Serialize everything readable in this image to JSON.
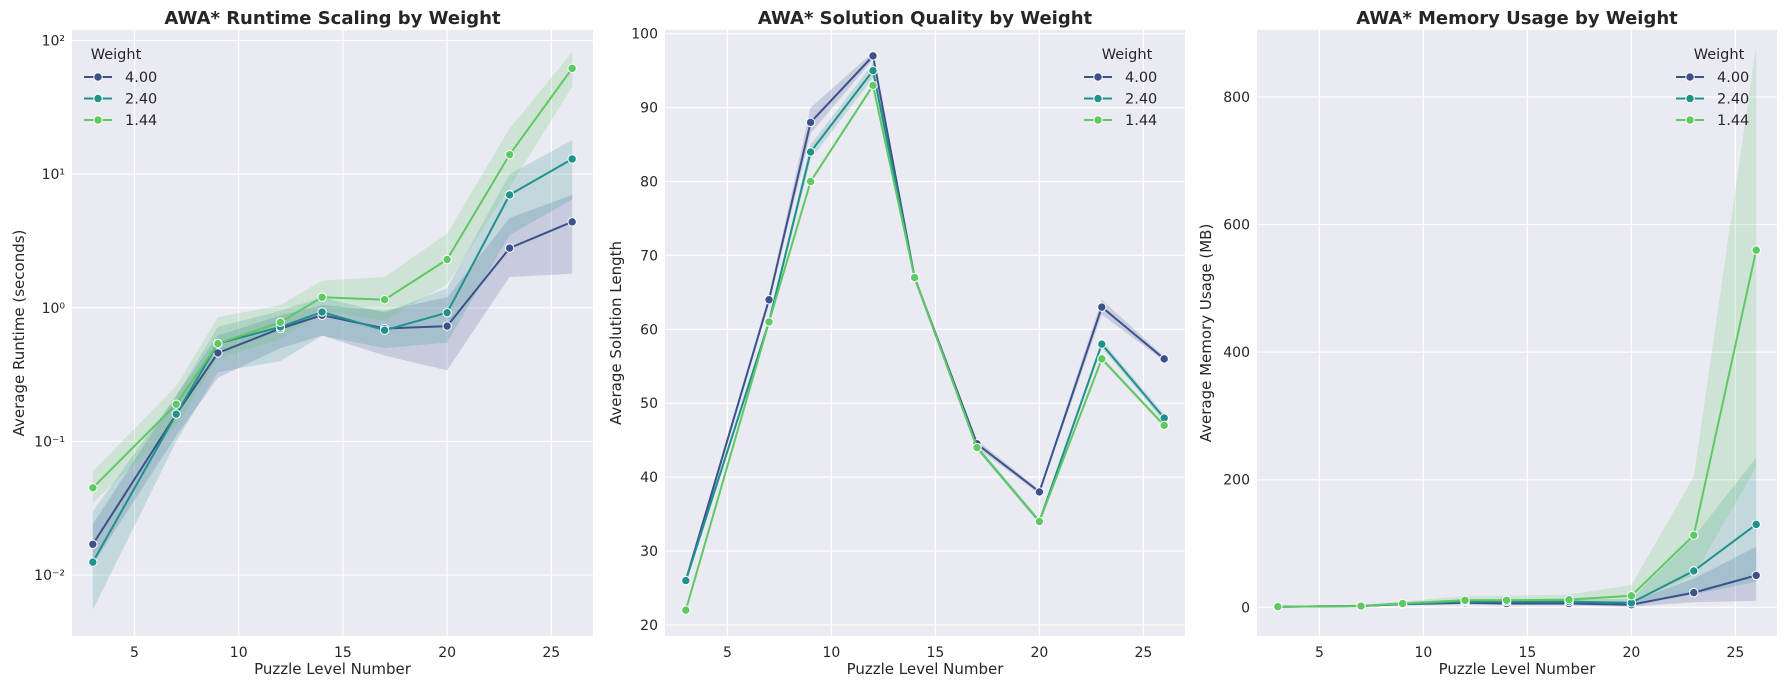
{
  "colors": {
    "w400": "#3b528b",
    "w240": "#21918c",
    "w144": "#5ec962",
    "panel_bg": "#eaeaf2",
    "grid": "#ffffff",
    "text": "#262626"
  },
  "chart_data": [
    {
      "type": "line",
      "title": "AWA* Runtime Scaling by Weight",
      "xlabel": "Puzzle Level Number",
      "ylabel": "Average Runtime (seconds)",
      "yscale": "log",
      "xlim": [
        2,
        27
      ],
      "ylim": [
        0.0035,
        120
      ],
      "x_ticks": [
        5,
        10,
        15,
        20,
        25
      ],
      "y_ticks": [
        0.01,
        0.1,
        1,
        10,
        100
      ],
      "y_tick_labels": [
        "10⁻²",
        "10⁻¹",
        "10⁰",
        "10¹",
        "10²"
      ],
      "x": [
        3,
        7,
        9,
        12,
        14,
        17,
        20,
        23,
        26
      ],
      "legend": {
        "title": "Weight",
        "placement": "upper-left"
      },
      "series": [
        {
          "name": "4.00",
          "values": [
            0.017,
            0.16,
            0.46,
            0.7,
            0.88,
            0.7,
            0.73,
            2.8,
            4.4
          ],
          "lower": [
            0.012,
            0.11,
            0.3,
            0.5,
            0.62,
            0.44,
            0.34,
            1.7,
            1.8
          ],
          "upper": [
            0.024,
            0.22,
            0.62,
            0.88,
            1.05,
            0.95,
            1.2,
            4.7,
            7.0
          ]
        },
        {
          "name": "2.40",
          "values": [
            0.0125,
            0.16,
            0.54,
            0.72,
            0.93,
            0.68,
            0.92,
            7.0,
            13.0
          ],
          "lower": [
            0.0055,
            0.1,
            0.33,
            0.4,
            0.62,
            0.5,
            0.55,
            3.5,
            6.5
          ],
          "upper": [
            0.03,
            0.22,
            0.72,
            0.95,
            1.2,
            0.92,
            1.4,
            10.0,
            18.0
          ]
        },
        {
          "name": "1.44",
          "values": [
            0.045,
            0.19,
            0.54,
            0.78,
            1.2,
            1.15,
            2.3,
            14.0,
            62.0
          ],
          "lower": [
            0.035,
            0.13,
            0.42,
            0.58,
            0.95,
            0.8,
            1.5,
            8.0,
            45.0
          ],
          "upper": [
            0.06,
            0.26,
            0.85,
            1.05,
            1.6,
            1.7,
            3.6,
            22.0,
            82.0
          ]
        }
      ]
    },
    {
      "type": "line",
      "title": "AWA* Solution Quality by Weight",
      "xlabel": "Puzzle Level Number",
      "ylabel": "Average Solution Length",
      "yscale": "linear",
      "xlim": [
        2,
        27
      ],
      "ylim": [
        18.5,
        100.5
      ],
      "x_ticks": [
        5,
        10,
        15,
        20,
        25
      ],
      "y_ticks": [
        20,
        30,
        40,
        50,
        60,
        70,
        80,
        90,
        100
      ],
      "y_tick_labels": [
        "20",
        "30",
        "40",
        "50",
        "60",
        "70",
        "80",
        "90",
        "100"
      ],
      "x": [
        3,
        7,
        9,
        12,
        14,
        17,
        20,
        23,
        26
      ],
      "legend": {
        "title": "Weight",
        "placement": "upper-right"
      },
      "series": [
        {
          "name": "4.00",
          "values": [
            26,
            64,
            88,
            97,
            67,
            44.5,
            38,
            63,
            56
          ],
          "lower": [
            25.5,
            63.5,
            86.5,
            96.5,
            66.7,
            44.0,
            37.7,
            62.0,
            55.7
          ],
          "upper": [
            26.5,
            64.5,
            90,
            97.5,
            67.3,
            45.0,
            38.3,
            64.0,
            56.3
          ]
        },
        {
          "name": "2.40",
          "values": [
            26,
            61,
            84,
            95,
            67,
            44,
            34,
            58,
            48
          ],
          "lower": [
            25.5,
            60.5,
            83,
            94,
            66.7,
            43.7,
            33.7,
            57.5,
            47.5
          ],
          "upper": [
            26.5,
            61.5,
            85,
            96,
            67.3,
            44.3,
            34.3,
            58.5,
            48.5
          ]
        },
        {
          "name": "1.44",
          "values": [
            22,
            61,
            80,
            93,
            67,
            44,
            34,
            56,
            47
          ],
          "lower": [
            21.7,
            60.7,
            79.7,
            92.7,
            66.7,
            43.7,
            33.7,
            55.7,
            46.7
          ],
          "upper": [
            22.3,
            61.3,
            80.3,
            93.3,
            67.3,
            44.3,
            34.3,
            56.3,
            47.3
          ]
        }
      ]
    },
    {
      "type": "line",
      "title": "AWA* Memory Usage by Weight",
      "xlabel": "Puzzle Level Number",
      "ylabel": "Average Memory Usage (MB)",
      "yscale": "linear",
      "xlim": [
        2,
        27
      ],
      "ylim": [
        -45,
        905
      ],
      "x_ticks": [
        5,
        10,
        15,
        20,
        25
      ],
      "y_ticks": [
        0,
        200,
        400,
        600,
        800
      ],
      "y_tick_labels": [
        "0",
        "200",
        "400",
        "600",
        "800"
      ],
      "x": [
        3,
        7,
        9,
        12,
        14,
        17,
        20,
        23,
        26
      ],
      "legend": {
        "title": "Weight",
        "placement": "upper-right"
      },
      "series": [
        {
          "name": "4.00",
          "values": [
            1,
            2,
            5,
            7,
            6,
            6,
            4,
            23,
            50
          ],
          "lower": [
            0,
            1,
            3,
            4,
            3,
            3,
            1,
            8,
            10
          ],
          "upper": [
            2,
            3,
            8,
            10,
            9,
            9,
            9,
            45,
            95
          ]
        },
        {
          "name": "2.40",
          "values": [
            1,
            2,
            5,
            9,
            9,
            9,
            7,
            57,
            130
          ],
          "lower": [
            0,
            1,
            3,
            5,
            5,
            5,
            3,
            20,
            40
          ],
          "upper": [
            2,
            4,
            8,
            13,
            13,
            13,
            13,
            110,
            235
          ]
        },
        {
          "name": "1.44",
          "values": [
            1,
            2,
            6,
            11,
            11,
            12,
            18,
            113,
            560
          ],
          "lower": [
            0,
            1,
            4,
            7,
            7,
            7,
            8,
            50,
            220
          ],
          "upper": [
            2,
            4,
            9,
            18,
            18,
            20,
            35,
            205,
            880
          ]
        }
      ]
    }
  ]
}
